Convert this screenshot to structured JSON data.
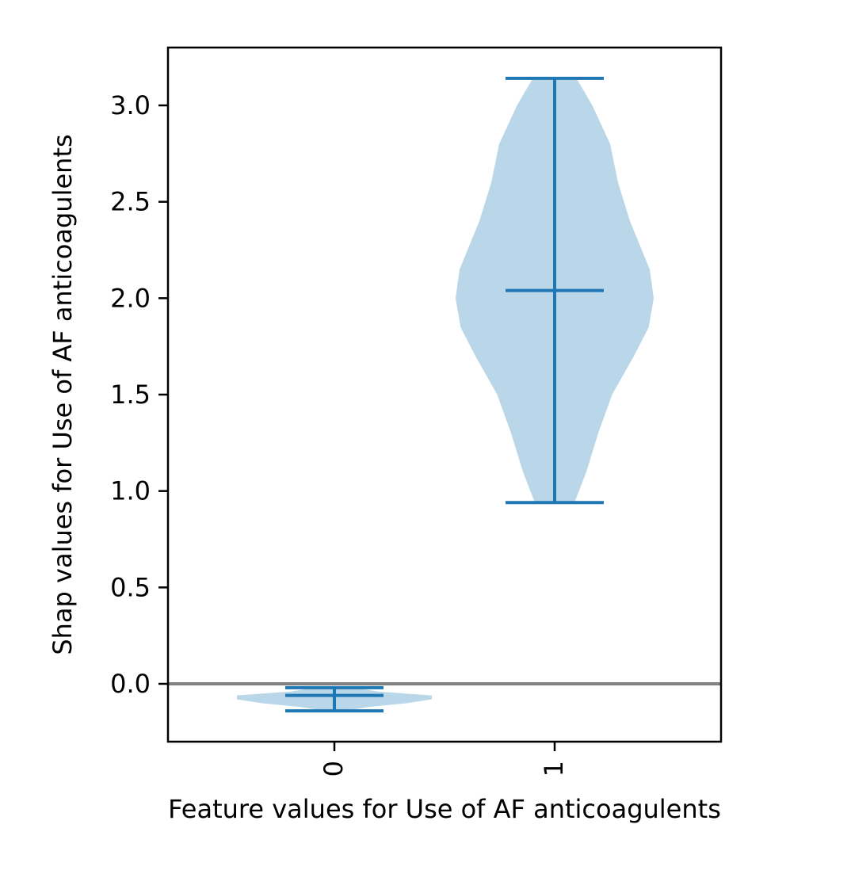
{
  "chart_data": {
    "type": "violin",
    "xlabel": "Feature values for Use of AF anticoagulents",
    "ylabel": "Shap values for Use of AF anticoagulents",
    "ylim": [
      -0.3,
      3.3
    ],
    "yticks": [
      0.0,
      0.5,
      1.0,
      1.5,
      2.0,
      2.5,
      3.0
    ],
    "ytick_labels": [
      "0.0",
      "0.5",
      "1.0",
      "1.5",
      "2.0",
      "2.5",
      "3.0"
    ],
    "categories": [
      "0",
      "1"
    ],
    "reference_line": 0.0,
    "violins": [
      {
        "category": "0",
        "min": -0.14,
        "max": -0.02,
        "mean": -0.06,
        "density": [
          [
            -0.14,
            0.1
          ],
          [
            -0.12,
            0.35
          ],
          [
            -0.1,
            0.75
          ],
          [
            -0.08,
            1.0
          ],
          [
            -0.06,
            1.0
          ],
          [
            -0.04,
            0.45
          ],
          [
            -0.02,
            0.2
          ]
        ]
      },
      {
        "category": "1",
        "min": 0.94,
        "max": 3.14,
        "mean": 2.04,
        "density": [
          [
            0.94,
            0.2
          ],
          [
            1.1,
            0.32
          ],
          [
            1.3,
            0.44
          ],
          [
            1.5,
            0.58
          ],
          [
            1.7,
            0.8
          ],
          [
            1.85,
            0.95
          ],
          [
            2.0,
            1.0
          ],
          [
            2.15,
            0.96
          ],
          [
            2.4,
            0.76
          ],
          [
            2.6,
            0.64
          ],
          [
            2.8,
            0.56
          ],
          [
            3.0,
            0.38
          ],
          [
            3.14,
            0.22
          ]
        ]
      }
    ],
    "colors": {
      "body": "#bad6e9",
      "lines": "#1f77b4",
      "refline": "#808080"
    }
  }
}
